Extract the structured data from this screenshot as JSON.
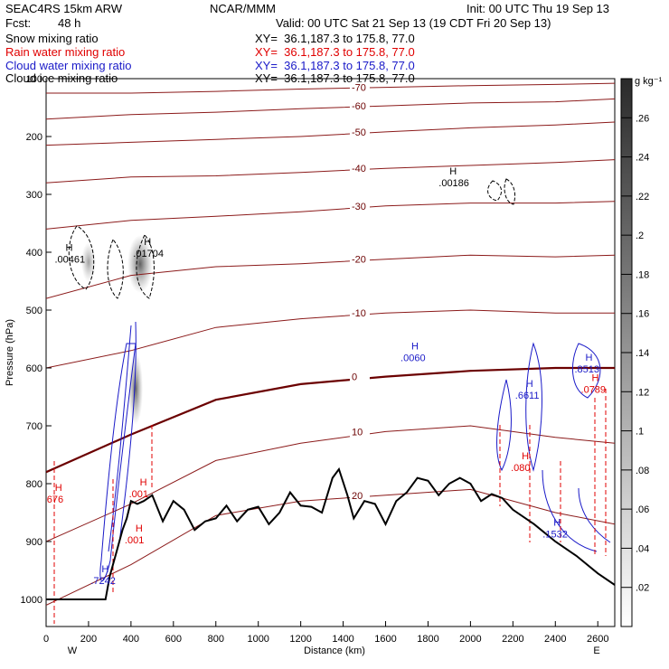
{
  "header": {
    "model": "SEAC4RS 15km ARW",
    "center": "NCAR/MMM",
    "init": "Init: 00 UTC Thu 19 Sep 13",
    "fcst_label": "Fcst:",
    "fcst_value": "48 h",
    "valid": "Valid: 00 UTC Sat 21 Sep 13 (19 CDT Fri 20 Sep 13)"
  },
  "fields": [
    {
      "name": "Snow mixing ratio",
      "xy": "XY=  36.1,187.3 to 175.8, 77.0",
      "color": "#000000"
    },
    {
      "name": "Rain water mixing ratio",
      "xy": "XY=  36.1,187.3 to 175.8, 77.0",
      "color": "#e00000"
    },
    {
      "name": "Cloud water mixing ratio",
      "xy": "XY=  36.1,187.3 to 175.8, 77.0",
      "color": "#1a1ac8"
    },
    {
      "name": "Cloud ice mixing ratio",
      "xy": "XY=  36.1,187.3 to 175.8, 77.0",
      "color": "#000000"
    }
  ],
  "chart_data": {
    "type": "cross-section",
    "xlabel": "Distance (km)",
    "ylabel": "Pressure (hPa)",
    "xlim": [
      0,
      2680
    ],
    "ylim": [
      1040,
      100
    ],
    "x_ticks": [
      0,
      200,
      400,
      600,
      800,
      1000,
      1200,
      1400,
      1600,
      1800,
      2000,
      2200,
      2400,
      2600
    ],
    "y_ticks": [
      1000,
      900,
      800,
      700,
      600,
      500,
      400,
      300,
      200,
      100
    ],
    "end_labels": {
      "left": "W",
      "right": "E"
    },
    "colorbar": {
      "unit": "g kg⁻¹",
      "ticks": [
        ".02",
        ".04",
        ".06",
        ".08",
        ".1",
        ".12",
        ".14",
        ".16",
        ".18",
        ".2",
        ".22",
        ".24",
        ".26"
      ]
    },
    "terrain": {
      "x": [
        0,
        200,
        280,
        300,
        330,
        360,
        380,
        400,
        430,
        460,
        500,
        550,
        600,
        650,
        700,
        750,
        800,
        850,
        900,
        950,
        1000,
        1050,
        1100,
        1150,
        1200,
        1250,
        1300,
        1350,
        1380,
        1420,
        1450,
        1500,
        1550,
        1600,
        1650,
        1700,
        1750,
        1800,
        1850,
        1900,
        1950,
        2000,
        2050,
        2100,
        2150,
        2200,
        2300,
        2400,
        2500,
        2600,
        2680
      ],
      "p": [
        1000,
        1000,
        1000,
        960,
        920,
        880,
        860,
        830,
        835,
        830,
        820,
        865,
        830,
        845,
        880,
        865,
        860,
        838,
        865,
        845,
        840,
        870,
        850,
        815,
        838,
        840,
        850,
        790,
        775,
        820,
        860,
        830,
        835,
        870,
        830,
        815,
        790,
        795,
        820,
        800,
        790,
        800,
        830,
        818,
        825,
        845,
        870,
        900,
        925,
        955,
        975
      ]
    },
    "temperature_isotherms_C": [
      {
        "label": "20",
        "x": [
          0,
          400,
          800,
          1200,
          1600,
          2000,
          2400,
          2680
        ],
        "p": [
          1010,
          940,
          855,
          830,
          820,
          810,
          850,
          870
        ]
      },
      {
        "label": "10",
        "x": [
          0,
          400,
          800,
          1200,
          1600,
          2000,
          2400,
          2680
        ],
        "p": [
          900,
          835,
          760,
          730,
          710,
          700,
          720,
          730
        ]
      },
      {
        "label": "0",
        "x": [
          0,
          400,
          800,
          1200,
          1600,
          2000,
          2400,
          2680
        ],
        "p": [
          780,
          715,
          655,
          628,
          615,
          605,
          600,
          600
        ]
      },
      {
        "label": "-10",
        "x": [
          0,
          400,
          800,
          1200,
          1600,
          2000,
          2400,
          2680
        ],
        "p": [
          600,
          570,
          530,
          515,
          505,
          500,
          505,
          505
        ]
      },
      {
        "label": "-20",
        "x": [
          0,
          400,
          800,
          1200,
          1600,
          2000,
          2400,
          2680
        ],
        "p": [
          480,
          440,
          425,
          420,
          412,
          405,
          408,
          405
        ]
      },
      {
        "label": "-30",
        "x": [
          0,
          400,
          800,
          1200,
          1600,
          2000,
          2400,
          2680
        ],
        "p": [
          360,
          345,
          338,
          330,
          320,
          315,
          315,
          312
        ]
      },
      {
        "label": "-40",
        "x": [
          0,
          400,
          800,
          1200,
          1600,
          2000,
          2400,
          2680
        ],
        "p": [
          280,
          270,
          268,
          262,
          255,
          250,
          245,
          240
        ]
      },
      {
        "label": "-50",
        "x": [
          0,
          400,
          800,
          1200,
          1600,
          2000,
          2400,
          2680
        ],
        "p": [
          215,
          210,
          205,
          200,
          192,
          185,
          180,
          175
        ]
      },
      {
        "label": "-60",
        "x": [
          0,
          400,
          800,
          1200,
          1600,
          2000,
          2400,
          2680
        ],
        "p": [
          170,
          162,
          158,
          152,
          147,
          142,
          140,
          135
        ]
      },
      {
        "label": "-70",
        "x": [
          0,
          400,
          800,
          1200,
          1600,
          2000,
          2400,
          2680
        ],
        "p": [
          125,
          125,
          122,
          118,
          115,
          112,
          110,
          108
        ]
      }
    ],
    "maxima_labels": [
      {
        "text": ".00461",
        "x": 100,
        "p": 415,
        "color": "#000000"
      },
      {
        "text": ".01704",
        "x": 470,
        "p": 405,
        "color": "#000000"
      },
      {
        "text": ".00186",
        "x": 1910,
        "p": 283,
        "color": "#000000"
      },
      {
        "text": ".0060",
        "x": 1730,
        "p": 585,
        "color": "#1a1ac8"
      },
      {
        "text": ".7242",
        "x": 270,
        "p": 970,
        "color": "#1a1ac8"
      },
      {
        "text": ".6611",
        "x": 2270,
        "p": 650,
        "color": "#1a1ac8"
      },
      {
        "text": ".1532",
        "x": 2400,
        "p": 890,
        "color": "#1a1ac8"
      },
      {
        "text": ".8513",
        "x": 2550,
        "p": 605,
        "color": "#1a1ac8"
      },
      {
        "text": ".0789",
        "x": 2580,
        "p": 640,
        "color": "#e00000"
      },
      {
        "text": ".080",
        "x": 2250,
        "p": 775,
        "color": "#e00000"
      },
      {
        "text": ".001",
        "x": 430,
        "p": 900,
        "color": "#e00000"
      },
      {
        "text": ".001",
        "x": 450,
        "p": 820,
        "color": "#e00000"
      },
      {
        "text": ".676",
        "x": 50,
        "p": 830,
        "color": "#e00000"
      }
    ]
  }
}
